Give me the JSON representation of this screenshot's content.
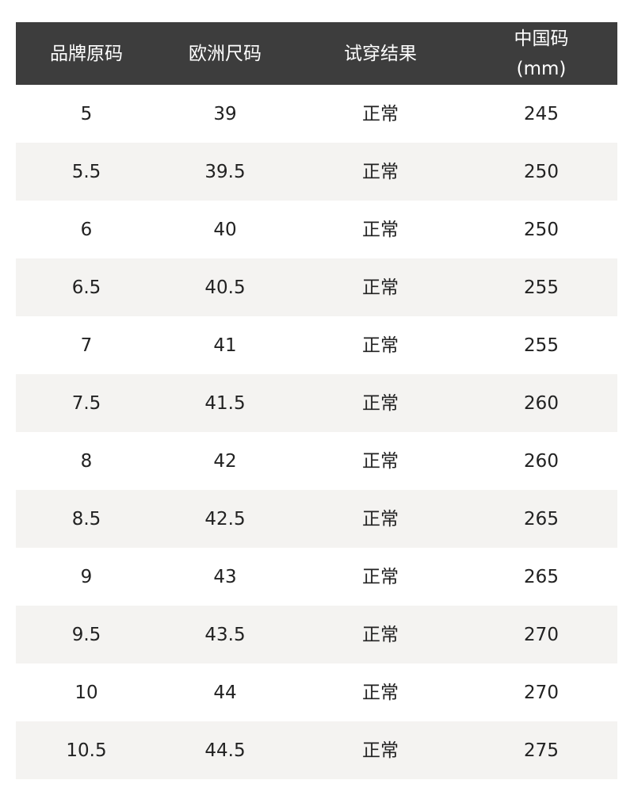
{
  "table": {
    "header": [
      "品牌原码",
      "欧洲尺码",
      "试穿结果",
      "中国码\n(mm)"
    ],
    "rows": [
      [
        "5",
        "39",
        "正常",
        "245"
      ],
      [
        "5.5",
        "39.5",
        "正常",
        "250"
      ],
      [
        "6",
        "40",
        "正常",
        "250"
      ],
      [
        "6.5",
        "40.5",
        "正常",
        "255"
      ],
      [
        "7",
        "41",
        "正常",
        "255"
      ],
      [
        "7.5",
        "41.5",
        "正常",
        "260"
      ],
      [
        "8",
        "42",
        "正常",
        "260"
      ],
      [
        "8.5",
        "42.5",
        "正常",
        "265"
      ],
      [
        "9",
        "43",
        "正常",
        "265"
      ],
      [
        "9.5",
        "43.5",
        "正常",
        "270"
      ],
      [
        "10",
        "44",
        "正常",
        "270"
      ],
      [
        "10.5",
        "44.5",
        "正常",
        "275"
      ]
    ]
  }
}
